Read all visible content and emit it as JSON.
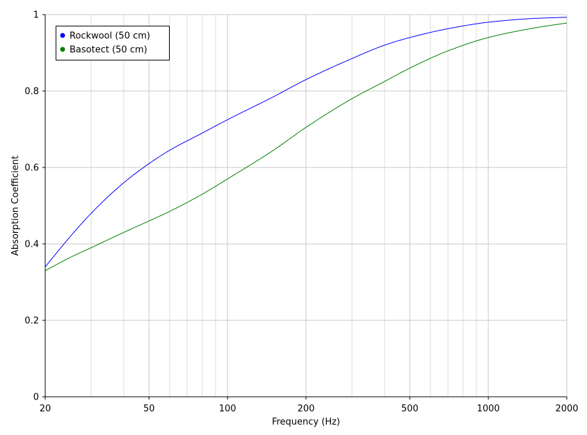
{
  "chart_data": {
    "type": "line",
    "xlabel": "Frequency (Hz)",
    "ylabel": "Absorption Coefficient",
    "x_scale": "log",
    "xlim": [
      20,
      2000
    ],
    "ylim": [
      0,
      1
    ],
    "x_ticks": [
      20,
      50,
      100,
      200,
      500,
      1000,
      2000
    ],
    "x_minor_gridlines": [
      30,
      40,
      60,
      70,
      80,
      90,
      300,
      400,
      600,
      700,
      800,
      900
    ],
    "y_ticks": [
      0,
      0.2,
      0.4,
      0.6,
      0.8,
      1
    ],
    "grid": true,
    "legend_position": "top-left",
    "series": [
      {
        "name": "Rockwool (50 cm)",
        "color": "#0000ff",
        "x": [
          20,
          25,
          30,
          40,
          50,
          60,
          80,
          100,
          150,
          200,
          300,
          400,
          500,
          700,
          1000,
          1500,
          2000
        ],
        "y": [
          0.34,
          0.42,
          0.48,
          0.56,
          0.61,
          0.645,
          0.69,
          0.725,
          0.785,
          0.83,
          0.885,
          0.92,
          0.94,
          0.963,
          0.98,
          0.99,
          0.993
        ]
      },
      {
        "name": "Basotect (50 cm)",
        "color": "#008000",
        "x": [
          20,
          25,
          30,
          40,
          50,
          60,
          80,
          100,
          150,
          200,
          300,
          400,
          500,
          700,
          1000,
          1500,
          2000
        ],
        "y": [
          0.33,
          0.365,
          0.39,
          0.43,
          0.46,
          0.485,
          0.53,
          0.57,
          0.645,
          0.705,
          0.78,
          0.825,
          0.86,
          0.905,
          0.94,
          0.965,
          0.978
        ]
      }
    ]
  }
}
